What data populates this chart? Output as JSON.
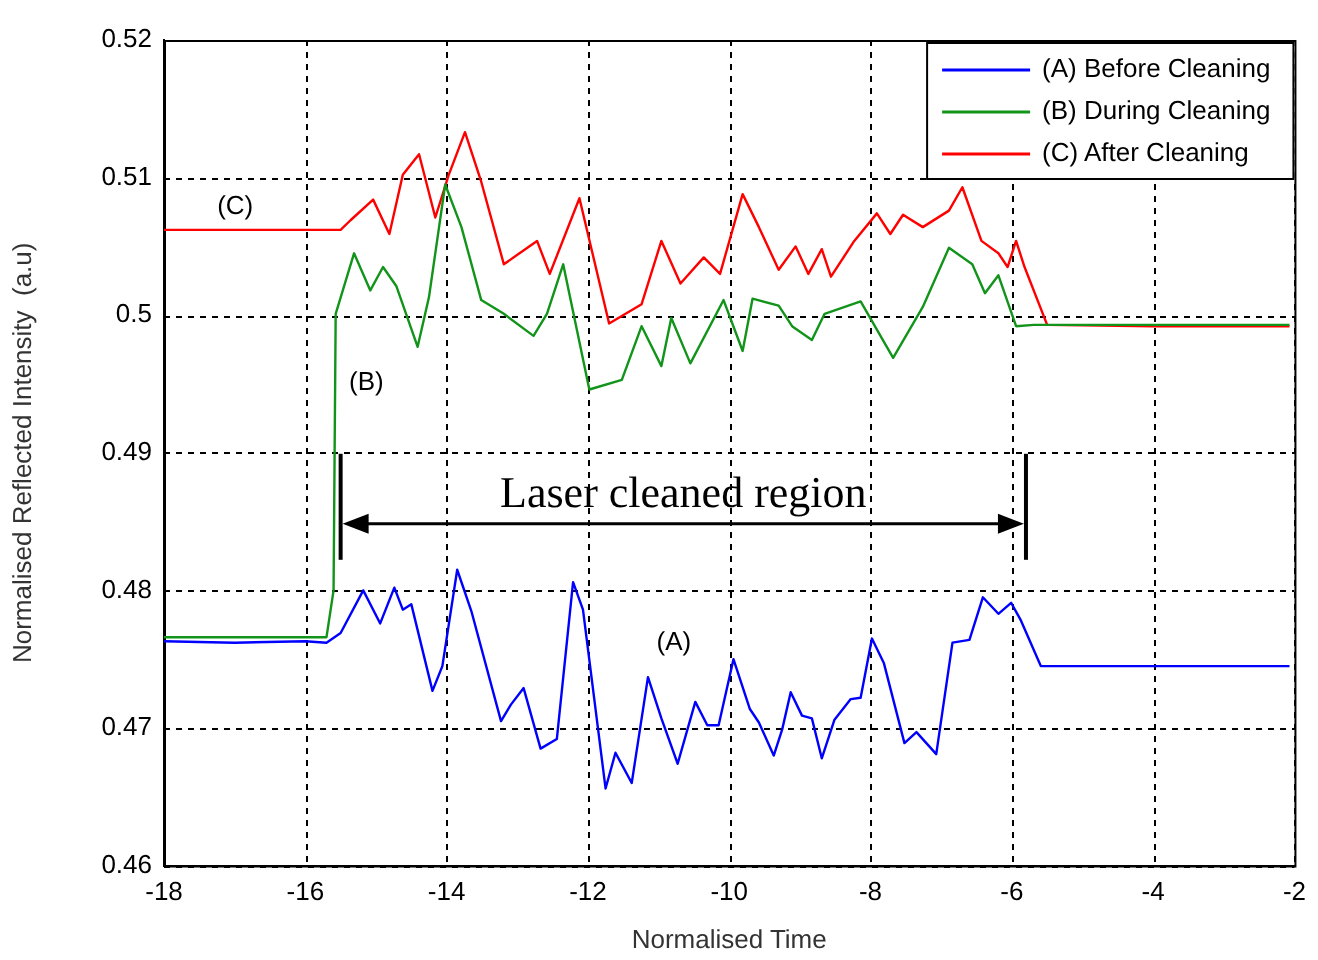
{
  "chart_data": {
    "type": "line",
    "xlabel": "Normalised Time",
    "ylabel": "Normalised Reflected Intensity  (a.u)",
    "xlim": [
      -18,
      -2
    ],
    "xticks": [
      -18,
      -16,
      -14,
      -12,
      -10,
      -8,
      -6,
      -4,
      -2
    ],
    "ylim": [
      0.46,
      0.52
    ],
    "yticks": [
      0.46,
      0.47,
      0.48,
      0.49,
      0.5,
      0.51,
      0.52
    ],
    "grid": true,
    "legend": "top right",
    "line_style": "solid",
    "marker": "none",
    "series": [
      {
        "name": "(A) Before Cleaning",
        "color": "#0000ff",
        "x": [
          -18,
          -17,
          -16,
          -15.7,
          -15.5,
          -15.18,
          -14.94,
          -14.74,
          -14.62,
          -14.5,
          -14.2,
          -14.06,
          -13.85,
          -13.65,
          -13.23,
          -13.09,
          -12.91,
          -12.67,
          -12.44,
          -12.21,
          -12.07,
          -11.75,
          -11.61,
          -11.38,
          -11.15,
          -10.96,
          -10.73,
          -10.48,
          -10.31,
          -10.15,
          -9.94,
          -9.71,
          -9.58,
          -9.37,
          -9.25,
          -9.13,
          -8.97,
          -8.83,
          -8.69,
          -8.51,
          -8.28,
          -8.14,
          -7.98,
          -7.81,
          -7.52,
          -7.35,
          -7.07,
          -6.84,
          -6.6,
          -6.41,
          -6.19,
          -6.01,
          -5.87,
          -5.59,
          -4,
          -2.07
        ],
        "values": [
          0.4763,
          0.4762,
          0.4763,
          0.4762,
          0.4769,
          0.48,
          0.4776,
          0.4802,
          0.4786,
          0.479,
          0.4727,
          0.4745,
          0.4815,
          0.4785,
          0.4705,
          0.4717,
          0.4729,
          0.4685,
          0.4692,
          0.4806,
          0.4786,
          0.4656,
          0.4682,
          0.466,
          0.4737,
          0.4707,
          0.4674,
          0.4719,
          0.4702,
          0.4702,
          0.475,
          0.4714,
          0.4704,
          0.468,
          0.4699,
          0.4726,
          0.4709,
          0.4707,
          0.4678,
          0.4706,
          0.4721,
          0.4722,
          0.4765,
          0.4747,
          0.4689,
          0.4697,
          0.4681,
          0.4762,
          0.4764,
          0.4795,
          0.4783,
          0.4791,
          0.4778,
          0.4745,
          0.4745,
          0.4745
        ]
      },
      {
        "name": "(B) During Cleaning",
        "color": "#12941a",
        "x": [
          -18,
          -16,
          -15.7,
          -15.6,
          -15.57,
          -15.31,
          -15.08,
          -14.9,
          -14.71,
          -14.41,
          -14.25,
          -14.02,
          -13.79,
          -13.51,
          -13.19,
          -12.77,
          -12.58,
          -12.35,
          -11.98,
          -11.52,
          -11.24,
          -10.96,
          -10.82,
          -10.55,
          -10.08,
          -9.81,
          -9.67,
          -9.3,
          -9.11,
          -8.83,
          -8.65,
          -8.14,
          -7.68,
          -7.26,
          -6.89,
          -6.56,
          -6.38,
          -6.19,
          -5.94,
          -5.69,
          -4,
          -2.07
        ],
        "values": [
          0.4766,
          0.4766,
          0.4766,
          0.48,
          0.5001,
          0.5045,
          0.5018,
          0.5035,
          0.5021,
          0.4977,
          0.5013,
          0.5095,
          0.5064,
          0.5011,
          0.5001,
          0.4985,
          0.5001,
          0.5037,
          0.4946,
          0.4953,
          0.4992,
          0.4963,
          0.4998,
          0.4965,
          0.5011,
          0.4974,
          0.5012,
          0.5007,
          0.4992,
          0.4982,
          0.5001,
          0.501,
          0.4969,
          0.5006,
          0.5049,
          0.5037,
          0.5016,
          0.5029,
          0.4992,
          0.4993,
          0.4993,
          0.4993
        ]
      },
      {
        "name": "(C) After Cleaning",
        "color": "#ff0000",
        "x": [
          -18,
          -16,
          -15.5,
          -15.36,
          -15.04,
          -14.81,
          -14.62,
          -14.39,
          -14.16,
          -13.97,
          -13.74,
          -13.51,
          -13.19,
          -12.72,
          -12.54,
          -12.12,
          -11.7,
          -11.24,
          -10.96,
          -10.69,
          -10.36,
          -10.13,
          -9.81,
          -9.58,
          -9.3,
          -9.06,
          -8.88,
          -8.69,
          -8.56,
          -8.23,
          -7.91,
          -7.72,
          -7.54,
          -7.26,
          -6.89,
          -6.7,
          -6.43,
          -6.19,
          -6.06,
          -5.94,
          -5.82,
          -5.5,
          -4,
          -2.07
        ],
        "values": [
          0.5062,
          0.5062,
          0.5062,
          0.5069,
          0.5084,
          0.5059,
          0.5102,
          0.5117,
          0.5071,
          0.5102,
          0.5133,
          0.5097,
          0.5037,
          0.5054,
          0.503,
          0.5085,
          0.4994,
          0.5008,
          0.5054,
          0.5023,
          0.5042,
          0.503,
          0.5088,
          0.5064,
          0.5033,
          0.505,
          0.503,
          0.5048,
          0.5028,
          0.5054,
          0.5074,
          0.5059,
          0.5073,
          0.5064,
          0.5076,
          0.5093,
          0.5054,
          0.5045,
          0.5035,
          0.5054,
          0.5035,
          0.4993,
          0.4992,
          0.4992
        ]
      }
    ],
    "annotations": [
      "(A)",
      "(B)",
      "(C)",
      "Laser cleaned region"
    ],
    "ref_lines": [
      {
        "axis": "x",
        "value": -15.5,
        "color": "#000000"
      },
      {
        "axis": "x",
        "value": -5.8,
        "color": "#000000"
      }
    ]
  }
}
